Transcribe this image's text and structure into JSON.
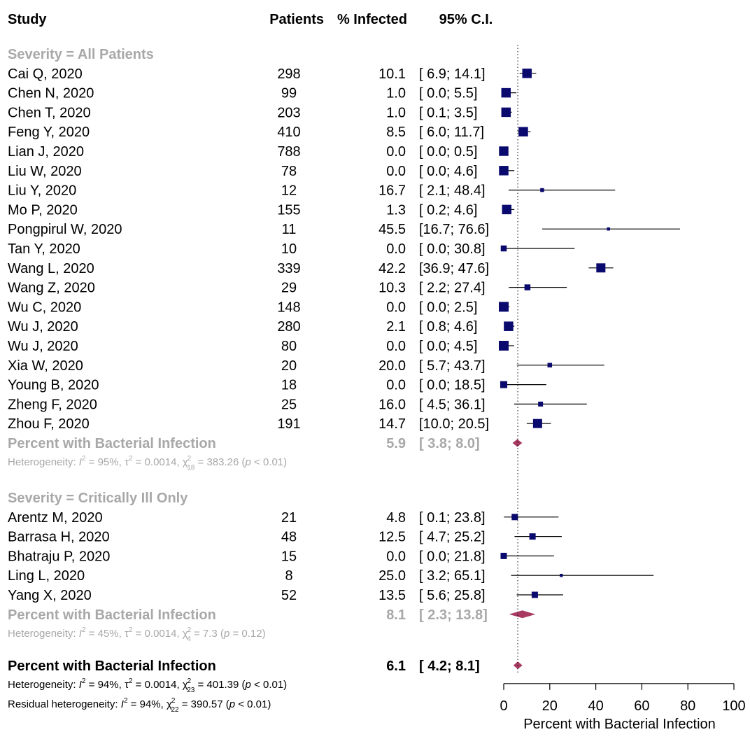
{
  "headers": {
    "study": "Study",
    "patients": "Patients",
    "pct": "% Infected",
    "ci": "95% C.I."
  },
  "colors": {
    "square": "#0a0a6e",
    "diamond": "#a93a62",
    "subgroup_text": "#a8a8a8"
  },
  "chart_data": {
    "type": "forest",
    "xlabel": "Percent with Bacterial Infection",
    "xlim": [
      0,
      100
    ],
    "xticks": [
      "0",
      "20",
      "40",
      "60",
      "80",
      "100"
    ],
    "reference_line": 6.1,
    "subgroups": [
      {
        "label": "Severity = All Patients",
        "studies": [
          {
            "study": "Cai Q, 2020",
            "patients": "298",
            "pct": "10.1",
            "ci": "[ 6.9; 14.1]",
            "est": 10.1,
            "lo": 6.9,
            "hi": 14.1,
            "weight": 13.5
          },
          {
            "study": "Chen N, 2020",
            "patients": "99",
            "pct": "1.0",
            "ci": "[ 0.0; 5.5]",
            "est": 1.0,
            "lo": 0.0,
            "hi": 5.5,
            "weight": 13.5
          },
          {
            "study": "Chen T, 2020",
            "patients": "203",
            "pct": "1.0",
            "ci": "[ 0.1; 3.5]",
            "est": 1.0,
            "lo": 0.1,
            "hi": 3.5,
            "weight": 13.5
          },
          {
            "study": "Feng Y, 2020",
            "patients": "410",
            "pct": "8.5",
            "ci": "[ 6.0; 11.7]",
            "est": 8.5,
            "lo": 6.0,
            "hi": 11.7,
            "weight": 13.5
          },
          {
            "study": "Lian J, 2020",
            "patients": "788",
            "pct": "0.0",
            "ci": "[ 0.0; 0.5]",
            "est": 0.0,
            "lo": 0.0,
            "hi": 0.5,
            "weight": 13.5
          },
          {
            "study": "Liu W, 2020",
            "patients": "78",
            "pct": "0.0",
            "ci": "[ 0.0; 4.6]",
            "est": 0.0,
            "lo": 0.0,
            "hi": 4.6,
            "weight": 13.5
          },
          {
            "study": "Liu Y, 2020",
            "patients": "12",
            "pct": "16.7",
            "ci": "[ 2.1; 48.4]",
            "est": 16.7,
            "lo": 2.1,
            "hi": 48.4,
            "weight": 5.5
          },
          {
            "study": "Mo P, 2020",
            "patients": "155",
            "pct": "1.3",
            "ci": "[ 0.2; 4.6]",
            "est": 1.3,
            "lo": 0.2,
            "hi": 4.6,
            "weight": 13.5
          },
          {
            "study": "Pongpirul W, 2020",
            "patients": "11",
            "pct": "45.5",
            "ci": "[16.7; 76.6]",
            "est": 45.5,
            "lo": 16.7,
            "hi": 76.6,
            "weight": 4.5
          },
          {
            "study": "Tan Y, 2020",
            "patients": "10",
            "pct": "0.0",
            "ci": "[ 0.0; 30.8]",
            "est": 0.0,
            "lo": 0.0,
            "hi": 30.8,
            "weight": 8.5
          },
          {
            "study": "Wang L, 2020",
            "patients": "339",
            "pct": "42.2",
            "ci": "[36.9; 47.6]",
            "est": 42.2,
            "lo": 36.9,
            "hi": 47.6,
            "weight": 13.0
          },
          {
            "study": "Wang Z, 2020",
            "patients": "29",
            "pct": "10.3",
            "ci": "[ 2.2; 27.4]",
            "est": 10.3,
            "lo": 2.2,
            "hi": 27.4,
            "weight": 8.5
          },
          {
            "study": "Wu C, 2020",
            "patients": "148",
            "pct": "0.0",
            "ci": "[ 0.0; 2.5]",
            "est": 0.0,
            "lo": 0.0,
            "hi": 2.5,
            "weight": 14.0
          },
          {
            "study": "Wu J, 2020",
            "patients": "280",
            "pct": "2.1",
            "ci": "[ 0.8; 4.6]",
            "est": 2.1,
            "lo": 0.8,
            "hi": 4.6,
            "weight": 13.5
          },
          {
            "study": "Wu J, 2020",
            "patients": "80",
            "pct": "0.0",
            "ci": "[ 0.0; 4.5]",
            "est": 0.0,
            "lo": 0.0,
            "hi": 4.5,
            "weight": 14.0
          },
          {
            "study": "Xia W, 2020",
            "patients": "20",
            "pct": "20.0",
            "ci": "[ 5.7; 43.7]",
            "est": 20.0,
            "lo": 5.7,
            "hi": 43.7,
            "weight": 6.5
          },
          {
            "study": "Young B, 2020",
            "patients": "18",
            "pct": "0.0",
            "ci": "[ 0.0; 18.5]",
            "est": 0.0,
            "lo": 0.0,
            "hi": 18.5,
            "weight": 10.0
          },
          {
            "study": "Zheng F, 2020",
            "patients": "25",
            "pct": "16.0",
            "ci": "[ 4.5; 36.1]",
            "est": 16.0,
            "lo": 4.5,
            "hi": 36.1,
            "weight": 7.0
          },
          {
            "study": "Zhou F, 2020",
            "patients": "191",
            "pct": "14.7",
            "ci": "[10.0; 20.5]",
            "est": 14.7,
            "lo": 10.0,
            "hi": 20.5,
            "weight": 13.0
          }
        ],
        "summary": {
          "label": "Percent with Bacterial Infection",
          "pct": "5.9",
          "ci": "[ 3.8; 8.0]",
          "est": 5.9,
          "lo": 3.8,
          "hi": 8.0
        },
        "heterogeneity": {
          "prefix": "Heterogeneity: ",
          "I2": "95%",
          "tau2": "0.0014",
          "chi_df": "18",
          "chi_val": "383.26",
          "p": "< 0.01"
        }
      },
      {
        "label": "Severity = Critically Ill Only",
        "studies": [
          {
            "study": "Arentz M, 2020",
            "patients": "21",
            "pct": "4.8",
            "ci": "[ 0.1; 23.8]",
            "est": 4.8,
            "lo": 0.1,
            "hi": 23.8,
            "weight": 9.0
          },
          {
            "study": "Barrasa H, 2020",
            "patients": "48",
            "pct": "12.5",
            "ci": "[ 4.7; 25.2]",
            "est": 12.5,
            "lo": 4.7,
            "hi": 25.2,
            "weight": 9.0
          },
          {
            "study": "Bhatraju P, 2020",
            "patients": "15",
            "pct": "0.0",
            "ci": "[ 0.0; 21.8]",
            "est": 0.0,
            "lo": 0.0,
            "hi": 21.8,
            "weight": 9.0
          },
          {
            "study": "Ling L, 2020",
            "patients": "8",
            "pct": "25.0",
            "ci": "[ 3.2; 65.1]",
            "est": 25.0,
            "lo": 3.2,
            "hi": 65.1,
            "weight": 4.5
          },
          {
            "study": "Yang X, 2020",
            "patients": "52",
            "pct": "13.5",
            "ci": "[ 5.6; 25.8]",
            "est": 13.5,
            "lo": 5.6,
            "hi": 25.8,
            "weight": 9.0
          }
        ],
        "summary": {
          "label": "Percent with Bacterial Infection",
          "pct": "8.1",
          "ci": "[ 2.3; 13.8]",
          "est": 8.1,
          "lo": 2.3,
          "hi": 13.8
        },
        "heterogeneity": {
          "prefix": "Heterogeneity: ",
          "I2": "45%",
          "tau2": "0.0014",
          "chi_df": "4",
          "chi_val": "7.3",
          "p": "= 0.12"
        }
      }
    ],
    "overall": {
      "label": "Percent with Bacterial Infection",
      "pct": "6.1",
      "ci": "[ 4.2; 8.1]",
      "est": 6.1,
      "lo": 4.2,
      "hi": 8.1,
      "heterogeneity": {
        "prefix": "Heterogeneity: ",
        "I2": "94%",
        "tau2": "0.0014",
        "chi_df": "23",
        "chi_val": "401.39",
        "p": "< 0.01"
      },
      "residual": {
        "prefix": "Residual heterogeneity: ",
        "I2": "94%",
        "chi_df": "22",
        "chi_val": "390.57",
        "p": "< 0.01"
      }
    }
  }
}
